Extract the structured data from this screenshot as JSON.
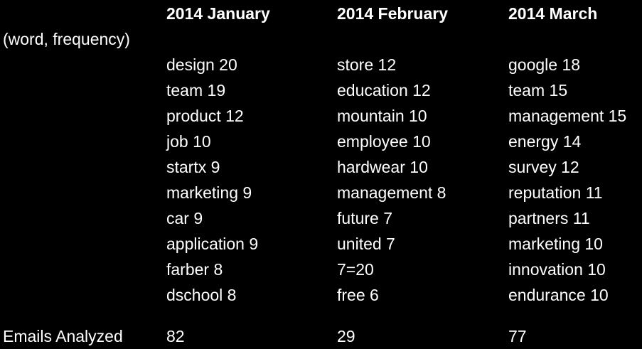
{
  "headers": [
    "2014 January",
    "2014 February",
    "2014 March"
  ],
  "row_label": "(word, frequency)",
  "columns": [
    [
      "design 20",
      "team 19",
      "product 12",
      "job 10",
      "startx 9",
      "marketing 9",
      "car 9",
      "application 9",
      "farber 8",
      "dschool 8"
    ],
    [
      "store 12",
      "education 12",
      "mountain 10",
      "employee 10",
      "hardwear 10",
      "management 8",
      "future 7",
      "united 7",
      "7=20",
      "free 6"
    ],
    [
      "google 18",
      "team 15",
      "management 15",
      "energy 14",
      "survey 12",
      "reputation 11",
      "partners 11",
      "marketing 10",
      "innovation 10",
      "endurance 10"
    ]
  ],
  "footer": {
    "label": "Emails Analyzed",
    "values": [
      "82",
      "29",
      "77"
    ]
  },
  "colors": {
    "background": "#000000",
    "text": "#ffffff"
  }
}
